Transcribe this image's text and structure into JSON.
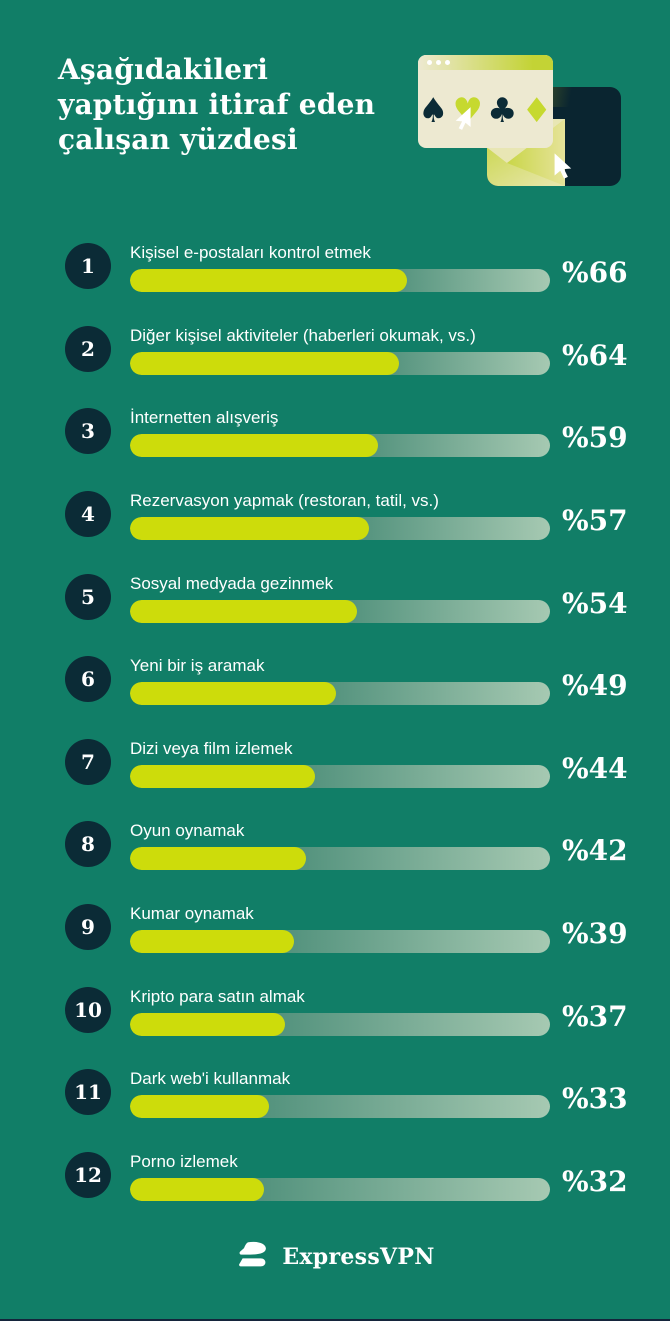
{
  "colors": {
    "background": "#117E67",
    "text": "#FFFFFF",
    "navy": "#0B2B36",
    "dark_card": "#0A2530",
    "chartreuse": "#CDDC0B",
    "accent_lime": "#C6D92F",
    "cream": "#EDE9D1",
    "track_start": "#4E8F7A",
    "track_end": "#A6C9B2",
    "bottom_line": "#14243B"
  },
  "header": {
    "title": "Aşağıdakileri yaptığını itiraf eden çalışan yüzdesi"
  },
  "illustration": {
    "suits": [
      "♠",
      "♥",
      "♣",
      "♦"
    ]
  },
  "chart_data": {
    "type": "bar",
    "orientation": "horizontal",
    "title": "Aşağıdakileri yaptığını itiraf eden çalışan yüzdesi",
    "xlim": [
      0,
      100
    ],
    "unit": "percent",
    "value_prefix": "%",
    "ranks": [
      "1",
      "2",
      "3",
      "4",
      "5",
      "6",
      "7",
      "8",
      "9",
      "10",
      "11",
      "12"
    ],
    "categories": [
      "Kişisel e-postaları kontrol etmek",
      "Diğer kişisel aktiviteler (haberleri okumak, vs.)",
      "İnternetten alışveriş",
      "Rezervasyon yapmak (restoran, tatil, vs.)",
      "Sosyal medyada gezinmek",
      "Yeni bir iş aramak",
      "Dizi veya film izlemek",
      "Oyun oynamak",
      "Kumar oynamak",
      "Kripto para satın almak",
      "Dark web'i kullanmak",
      "Porno izlemek"
    ],
    "values": [
      66,
      64,
      59,
      57,
      54,
      49,
      44,
      42,
      39,
      37,
      33,
      32
    ],
    "value_labels": [
      "%66",
      "%64",
      "%59",
      "%57",
      "%54",
      "%49",
      "%44",
      "%42",
      "%39",
      "%37",
      "%33",
      "%32"
    ],
    "bar_color": "#CDDC0B",
    "track_gradient": [
      "#4E8F7A",
      "#A6C9B2"
    ],
    "grid": false,
    "legend": false
  },
  "footer": {
    "brand": "ExpressVPN"
  }
}
